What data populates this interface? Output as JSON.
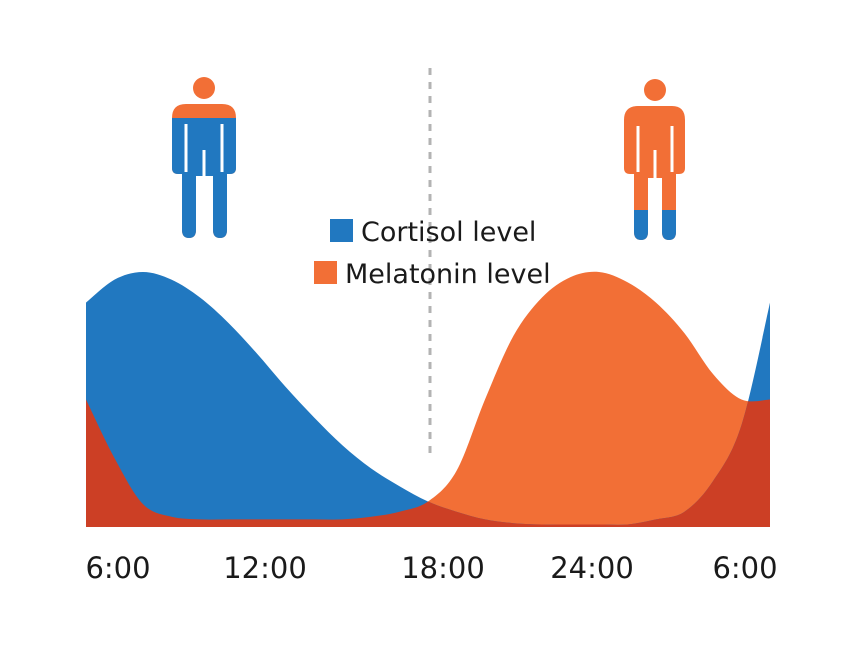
{
  "colors": {
    "cortisol": "#2178c0",
    "melatonin": "#f26f36",
    "overlap": "#cc3f25",
    "divider": "#b3b3b3",
    "text": "#1a1a1a"
  },
  "legend": {
    "cortisol_label": "Cortisol level",
    "melatonin_label": "Melatonin level"
  },
  "icons": {
    "left_figure": "person-icon-mostly-blue",
    "right_figure": "person-icon-mostly-orange"
  },
  "chart_data": {
    "type": "area",
    "title": "",
    "xlabel": "",
    "ylabel": "",
    "x_tick_labels": [
      "6:00",
      "12:00",
      "18:00",
      "24:00",
      "6:00"
    ],
    "x_hours_since_6am": [
      0,
      6,
      12,
      18,
      24
    ],
    "x_range_hours": [
      0,
      24
    ],
    "y_range": [
      0,
      1
    ],
    "y_axis_shown": false,
    "grid": false,
    "legend_position": "top-center",
    "marker_line_at_hours": 12,
    "series": [
      {
        "name": "Cortisol level",
        "x": [
          0,
          1,
          2,
          3,
          4,
          5,
          6,
          7,
          8,
          9,
          10,
          11,
          12,
          13,
          14,
          15,
          16,
          17,
          18,
          19,
          20,
          21,
          22,
          23,
          24
        ],
        "values": [
          0.88,
          0.97,
          1.0,
          0.97,
          0.9,
          0.8,
          0.68,
          0.55,
          0.43,
          0.32,
          0.23,
          0.16,
          0.1,
          0.06,
          0.03,
          0.015,
          0.01,
          0.01,
          0.01,
          0.01,
          0.03,
          0.06,
          0.18,
          0.4,
          0.88
        ]
      },
      {
        "name": "Melatonin level",
        "x": [
          0,
          1,
          2,
          3,
          4,
          5,
          6,
          7,
          8,
          9,
          10,
          11,
          12,
          13,
          14,
          15,
          16,
          17,
          18,
          19,
          20,
          21,
          22,
          23,
          24
        ],
        "values": [
          0.5,
          0.27,
          0.09,
          0.04,
          0.03,
          0.03,
          0.03,
          0.03,
          0.03,
          0.03,
          0.04,
          0.06,
          0.1,
          0.22,
          0.5,
          0.75,
          0.9,
          0.98,
          1.0,
          0.96,
          0.88,
          0.76,
          0.6,
          0.5,
          0.5
        ]
      }
    ]
  }
}
